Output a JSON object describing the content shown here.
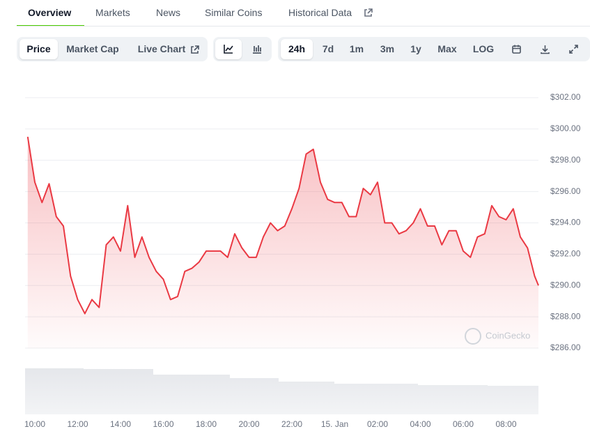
{
  "tabs": [
    "Overview",
    "Markets",
    "News",
    "Similar Coins",
    "Historical Data"
  ],
  "toolbar": {
    "view_buttons": [
      "Price",
      "Market Cap",
      "Live Chart"
    ],
    "range_buttons": [
      "24h",
      "7d",
      "1m",
      "3m",
      "1y",
      "Max",
      "LOG"
    ]
  },
  "watermark": "CoinGecko",
  "chart_data": {
    "type": "line",
    "color": "#ea3943",
    "categories": [
      null,
      "10:00",
      null,
      null,
      null,
      null,
      null,
      "12:00",
      null,
      null,
      null,
      null,
      null,
      "14:00",
      null,
      null,
      null,
      null,
      null,
      "16:00",
      null,
      null,
      null,
      null,
      null,
      "18:00",
      null,
      null,
      null,
      null,
      null,
      "20:00",
      null,
      null,
      null,
      null,
      null,
      "22:00",
      null,
      null,
      null,
      null,
      null,
      "15. Jan",
      null,
      null,
      null,
      null,
      null,
      "02:00",
      null,
      null,
      null,
      null,
      null,
      "04:00",
      null,
      null,
      null,
      null,
      null,
      "06:00",
      null,
      null,
      null,
      null,
      null,
      "08:00",
      null,
      null,
      null,
      null,
      null
    ],
    "values": [
      299.5,
      296.6,
      295.3,
      296.5,
      294.4,
      293.8,
      290.6,
      289.1,
      288.2,
      289.1,
      288.6,
      292.6,
      293.1,
      292.2,
      295.1,
      291.8,
      293.1,
      291.8,
      290.9,
      290.4,
      289.1,
      289.3,
      290.9,
      291.1,
      291.5,
      292.2,
      292.2,
      292.2,
      291.8,
      293.3,
      292.4,
      291.8,
      291.8,
      293.1,
      294.0,
      293.5,
      293.8,
      294.9,
      296.2,
      298.4,
      298.7,
      296.6,
      295.5,
      295.3,
      295.3,
      294.4,
      294.4,
      296.2,
      295.8,
      296.6,
      294.0,
      294.0,
      293.3,
      293.5,
      294.0,
      294.9,
      293.8,
      293.8,
      292.6,
      293.5,
      293.5,
      292.2,
      291.8,
      293.1,
      293.3,
      295.1,
      294.4,
      294.2,
      294.9,
      293.1,
      292.4,
      290.6,
      290.0
    ],
    "ylim": [
      286,
      302
    ],
    "yticks": [
      {
        "value": 286,
        "label": "$286.00"
      },
      {
        "value": 288,
        "label": "$288.00"
      },
      {
        "value": 290,
        "label": "$290.00"
      },
      {
        "value": 292,
        "label": "$292.00"
      },
      {
        "value": 294,
        "label": "$294.00"
      },
      {
        "value": 296,
        "label": "$296.00"
      },
      {
        "value": 298,
        "label": "$298.00"
      },
      {
        "value": 300,
        "label": "$300.00"
      },
      {
        "value": 302,
        "label": "$302.00"
      }
    ],
    "grid": true
  }
}
